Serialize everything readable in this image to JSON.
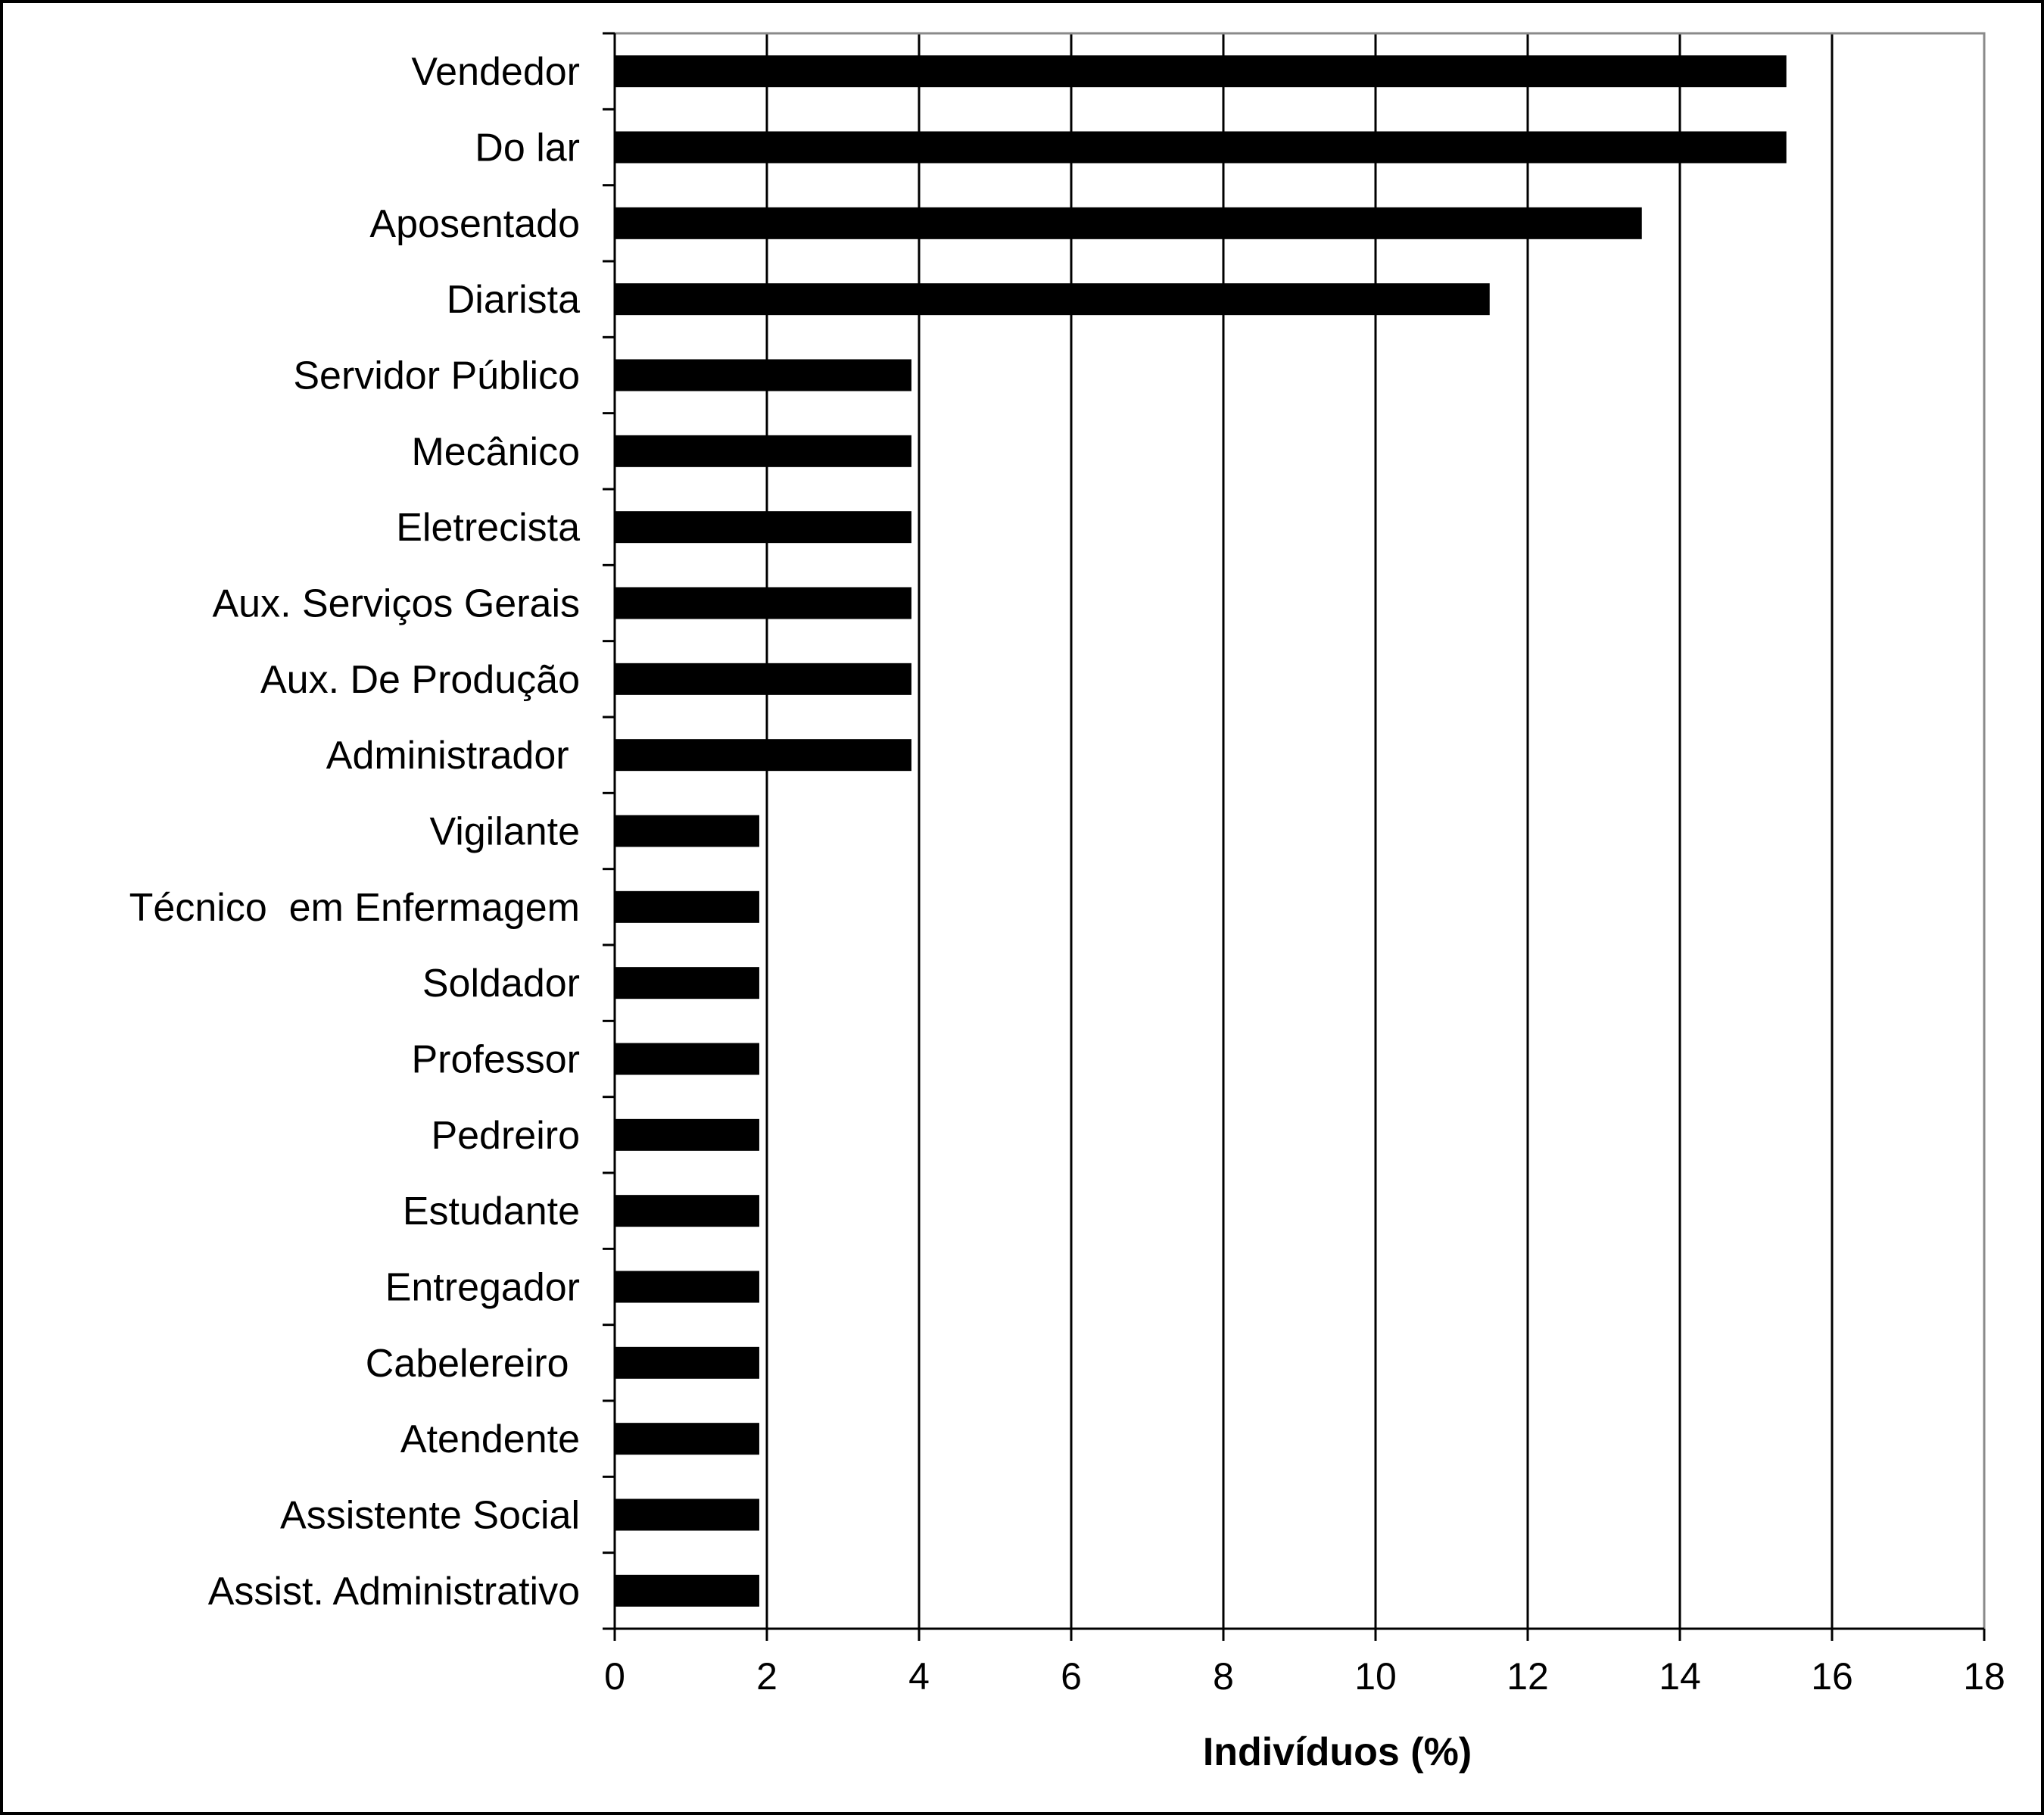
{
  "chart_data": {
    "type": "bar",
    "orientation": "horizontal",
    "categories": [
      "Vendedor",
      "Do lar",
      "Aposentado",
      "Diarista",
      "Servidor Público",
      "Mecânico",
      "Eletrecista",
      "Aux. Serviços Gerais",
      "Aux. De Produção",
      "Administrador ",
      "Vigilante",
      "Técnico  em Enfermagem",
      "Soldador",
      "Professor",
      "Pedreiro",
      "Estudante",
      "Entregador",
      "Cabelereiro ",
      "Atendente",
      "Assistente Social",
      "Assist. Administrativo"
    ],
    "values": [
      15.4,
      15.4,
      13.5,
      11.5,
      3.9,
      3.9,
      3.9,
      3.9,
      3.9,
      3.9,
      1.9,
      1.9,
      1.9,
      1.9,
      1.9,
      1.9,
      1.9,
      1.9,
      1.9,
      1.9,
      1.9
    ],
    "xlabel": "Indivíduos (%)",
    "ylabel": "",
    "title": "",
    "xlim": [
      0,
      18
    ],
    "xticks": [
      "0",
      "2",
      "4",
      "6",
      "8",
      "10",
      "12",
      "14",
      "16",
      "18"
    ],
    "grid": "vertical",
    "legend": "none",
    "colors": {
      "bar": "#000000",
      "grid": "#000000",
      "plot_border": "#8a8a8a",
      "frame": "#000000"
    }
  }
}
